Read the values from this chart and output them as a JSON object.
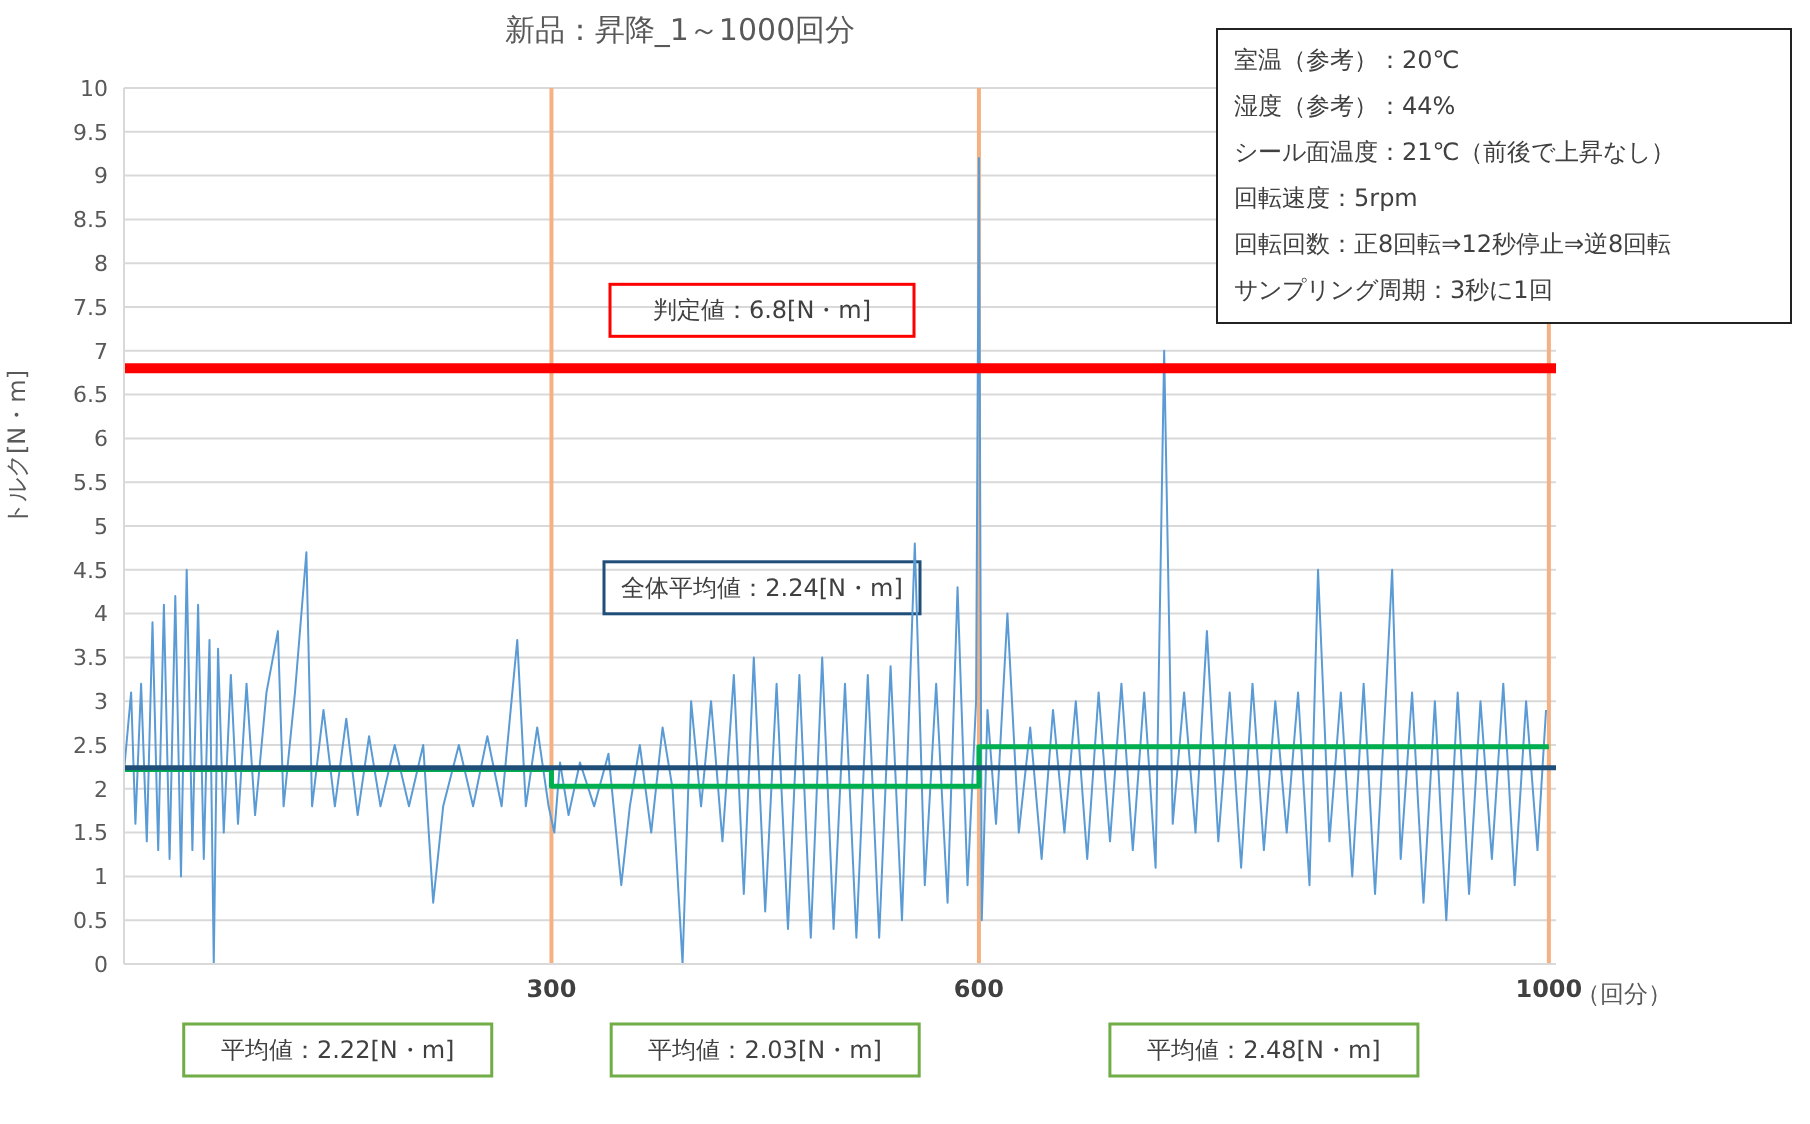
{
  "chart_data": {
    "type": "line",
    "title": "新品：昇降_1～1000回分",
    "xlabel": "（回分）",
    "ylabel": "トルク[N・m]",
    "xlim": [
      0,
      1005
    ],
    "xticks": [
      300,
      600,
      1000
    ],
    "ylim": [
      0,
      10
    ],
    "yticks": [
      0,
      0.5,
      1,
      1.5,
      2,
      2.5,
      3,
      3.5,
      4,
      4.5,
      5,
      5.5,
      6,
      6.5,
      7,
      7.5,
      8,
      8.5,
      9,
      9.5,
      10
    ],
    "grid": "y",
    "marker": "none",
    "series": [
      {
        "color": "#5b9bd5",
        "x": [
          0,
          5,
          8,
          12,
          16,
          20,
          24,
          28,
          32,
          36,
          40,
          44,
          48,
          52,
          56,
          60,
          63,
          66,
          70,
          75,
          80,
          86,
          92,
          100,
          108,
          112,
          120,
          128,
          132,
          140,
          148,
          156,
          164,
          172,
          180,
          190,
          200,
          210,
          217,
          224,
          235,
          245,
          255,
          265,
          276,
          282,
          290,
          298,
          302,
          306,
          312,
          320,
          330,
          340,
          349,
          355,
          362,
          370,
          378,
          385,
          392,
          398,
          405,
          412,
          420,
          428,
          435,
          442,
          450,
          458,
          466,
          474,
          482,
          490,
          498,
          506,
          514,
          522,
          530,
          538,
          546,
          555,
          562,
          570,
          578,
          585,
          592,
          598,
          600,
          602,
          606,
          612,
          620,
          628,
          636,
          644,
          652,
          660,
          668,
          676,
          684,
          692,
          700,
          708,
          716,
          724,
          730,
          736,
          744,
          752,
          760,
          768,
          776,
          784,
          792,
          800,
          808,
          816,
          824,
          832,
          838,
          846,
          854,
          862,
          870,
          878,
          886,
          890,
          896,
          904,
          912,
          920,
          928,
          936,
          944,
          952,
          960,
          968,
          976,
          984,
          992,
          998
        ],
        "values": [
          2.2,
          3.1,
          1.6,
          3.2,
          1.4,
          3.9,
          1.3,
          4.1,
          1.2,
          4.2,
          1.0,
          4.5,
          1.3,
          4.1,
          1.2,
          3.7,
          0.0,
          3.6,
          1.5,
          3.3,
          1.6,
          3.2,
          1.7,
          3.1,
          3.8,
          1.8,
          3.1,
          4.7,
          1.8,
          2.9,
          1.8,
          2.8,
          1.7,
          2.6,
          1.8,
          2.5,
          1.8,
          2.5,
          0.7,
          1.8,
          2.5,
          1.8,
          2.6,
          1.8,
          3.7,
          1.8,
          2.7,
          1.8,
          1.5,
          2.3,
          1.7,
          2.3,
          1.8,
          2.4,
          0.9,
          1.8,
          2.5,
          1.5,
          2.7,
          2.0,
          0.0,
          3.0,
          1.8,
          3.0,
          1.4,
          3.3,
          0.8,
          3.5,
          0.6,
          3.2,
          0.4,
          3.3,
          0.3,
          3.5,
          0.4,
          3.2,
          0.3,
          3.3,
          0.3,
          3.4,
          0.5,
          4.8,
          0.9,
          3.2,
          0.7,
          4.3,
          0.9,
          3.0,
          9.2,
          0.5,
          2.9,
          1.6,
          4.0,
          1.5,
          2.7,
          1.2,
          2.9,
          1.5,
          3.0,
          1.2,
          3.1,
          1.4,
          3.2,
          1.3,
          3.1,
          1.1,
          7.0,
          1.6,
          3.1,
          1.5,
          3.8,
          1.4,
          3.1,
          1.1,
          3.2,
          1.3,
          3.0,
          1.5,
          3.1,
          0.9,
          4.5,
          1.4,
          3.1,
          1.0,
          3.2,
          0.8,
          3.2,
          4.5,
          1.2,
          3.1,
          0.7,
          3.0,
          0.5,
          3.1,
          0.8,
          3.0,
          1.2,
          3.2,
          0.9,
          3.0,
          1.3,
          2.9
        ]
      },
      {
        "type": "step",
        "color": "#00b050",
        "x": [
          0,
          300,
          600,
          1000
        ],
        "values": [
          2.22,
          2.03,
          2.48,
          2.48
        ]
      }
    ],
    "ref_lines": [
      {
        "axis": "x",
        "value": 300,
        "color": "#f4b183"
      },
      {
        "axis": "x",
        "value": 600,
        "color": "#f4b183"
      },
      {
        "axis": "x",
        "value": 1000,
        "color": "#f4b183"
      },
      {
        "axis": "y",
        "value": 6.8,
        "label": "判定値：6.8[N・m]",
        "color": "#ff0000"
      },
      {
        "axis": "y",
        "value": 2.24,
        "color": "#1f4e79"
      }
    ],
    "annotations": [
      "室温（参考）：20℃",
      "湿度（参考）：44%",
      "シール面温度：21℃（前後で上昇なし）",
      "回転速度：5rpm",
      "回転回数：正8回転⇒12秒停止⇒逆8回転",
      "サンプリング周期：3秒に1回",
      "全体平均値：2.24[N・m]",
      "平均値：2.22[N・m]",
      "平均値：2.03[N・m]",
      "平均値：2.48[N・m]"
    ]
  }
}
